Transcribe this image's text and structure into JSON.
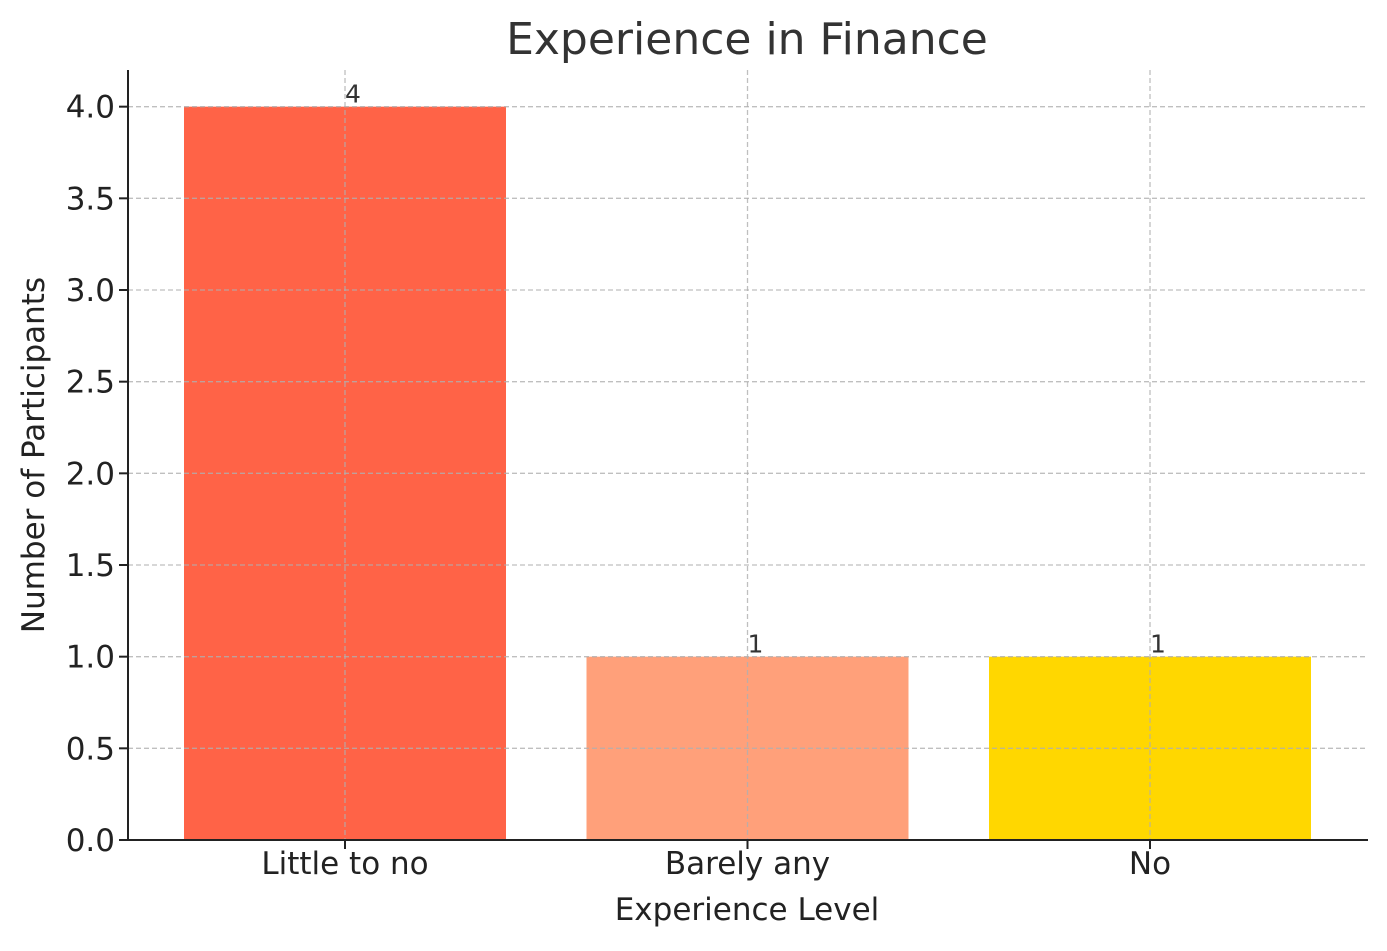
{
  "chart_data": {
    "type": "bar",
    "title": "Experience in Finance",
    "xlabel": "Experience Level",
    "ylabel": "Number of Participants",
    "categories": [
      "Little to no",
      "Barely any",
      "No"
    ],
    "values": [
      4,
      1,
      1
    ],
    "data_labels": [
      "4",
      "1",
      "1"
    ],
    "colors": [
      "#ff6347",
      "#ffa07a",
      "#ffd700"
    ],
    "ylim": [
      0,
      4.2
    ],
    "yticks": [
      0.0,
      0.5,
      1.0,
      1.5,
      2.0,
      2.5,
      3.0,
      3.5,
      4.0
    ],
    "ytick_labels": [
      "0.0",
      "0.5",
      "1.0",
      "1.5",
      "2.0",
      "2.5",
      "3.0",
      "3.5",
      "4.0"
    ],
    "grid": true,
    "grid_style": "dashed"
  }
}
